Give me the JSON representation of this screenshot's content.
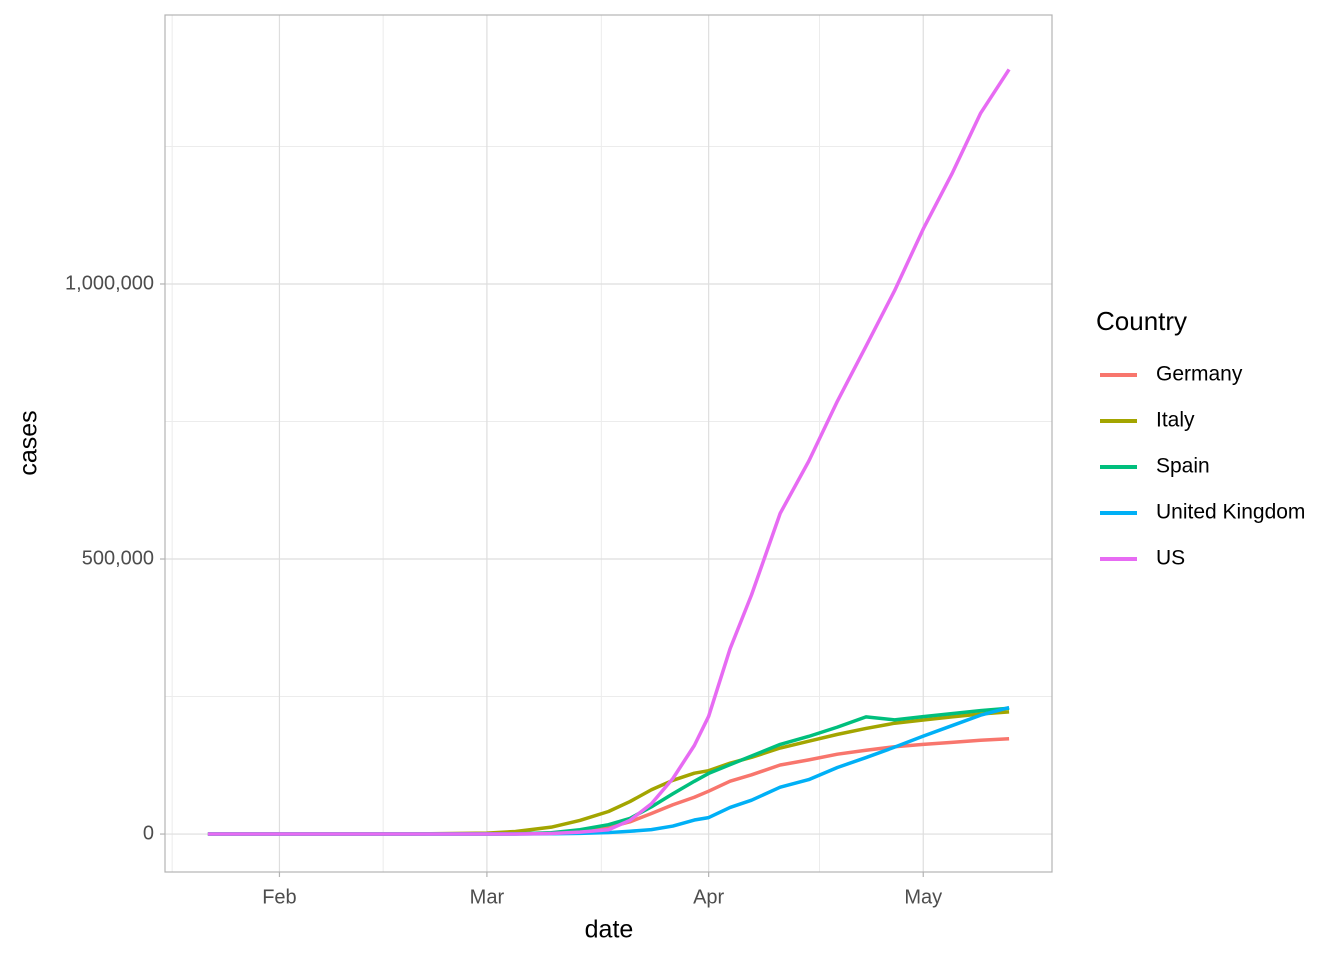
{
  "chart_data": {
    "type": "line",
    "x_label": "date",
    "y_label": "cases",
    "legend_title": "Country",
    "legend_position": "right",
    "grid": true,
    "x": [
      22,
      32,
      40,
      50,
      61,
      65,
      70,
      74,
      78,
      81,
      84,
      87,
      90,
      92,
      95,
      98,
      102,
      106,
      110,
      114,
      118,
      122,
      126,
      130,
      134
    ],
    "xlim": [
      16,
      140
    ],
    "xticks": [
      {
        "value": 32,
        "label": "Feb"
      },
      {
        "value": 61,
        "label": "Mar"
      },
      {
        "value": 92,
        "label": "Apr"
      },
      {
        "value": 122,
        "label": "May"
      }
    ],
    "x_minor_gridlines": [
      17,
      46.5,
      77,
      107.5
    ],
    "ylim": [
      -69000,
      1489000
    ],
    "yticks": [
      {
        "value": 0,
        "label": "0"
      },
      {
        "value": 500000,
        "label": "500,000"
      },
      {
        "value": 1000000,
        "label": "1,000,000"
      }
    ],
    "y_minor_gridlines": [
      250000,
      750000,
      1250000
    ],
    "series": [
      {
        "name": "Germany",
        "color": "#F8766D",
        "values": [
          0,
          0,
          0,
          0,
          130,
          500,
          1900,
          5800,
          12300,
          22200,
          37300,
          53300,
          66900,
          77900,
          96100,
          107700,
          125500,
          134800,
          145200,
          152400,
          158700,
          163000,
          166700,
          170600,
          173200
        ]
      },
      {
        "name": "Italy",
        "color": "#A3A500",
        "values": [
          0,
          2,
          3,
          3,
          1700,
          4600,
          12500,
          24700,
          41000,
          59000,
          80500,
          97700,
          110600,
          115200,
          128900,
          139400,
          156400,
          168900,
          181200,
          192000,
          201500,
          207400,
          213000,
          218300,
          222100
        ]
      },
      {
        "name": "Spain",
        "color": "#00BF7D",
        "values": [
          0,
          1,
          2,
          2,
          84,
          400,
          2300,
          7800,
          17000,
          28500,
          49500,
          73200,
          95900,
          110200,
          126200,
          141900,
          163000,
          177600,
          194400,
          213000,
          207600,
          213400,
          219000,
          224400,
          228700
        ]
      },
      {
        "name": "United Kingdom",
        "color": "#00B0F6",
        "values": [
          0,
          0,
          0,
          0,
          36,
          115,
          460,
          1140,
          2700,
          5000,
          8100,
          14500,
          25500,
          29900,
          48400,
          61500,
          85200,
          99000,
          121000,
          139000,
          158000,
          178000,
          197000,
          216000,
          230000
        ]
      },
      {
        "name": "US",
        "color": "#E76BF3",
        "values": [
          1,
          8,
          12,
          15,
          30,
          100,
          1000,
          3500,
          7800,
          25000,
          55000,
          101000,
          161000,
          214000,
          337000,
          435000,
          583000,
          678000,
          787000,
          887000,
          988000,
          1100000,
          1200000,
          1310000,
          1390000
        ]
      }
    ]
  }
}
